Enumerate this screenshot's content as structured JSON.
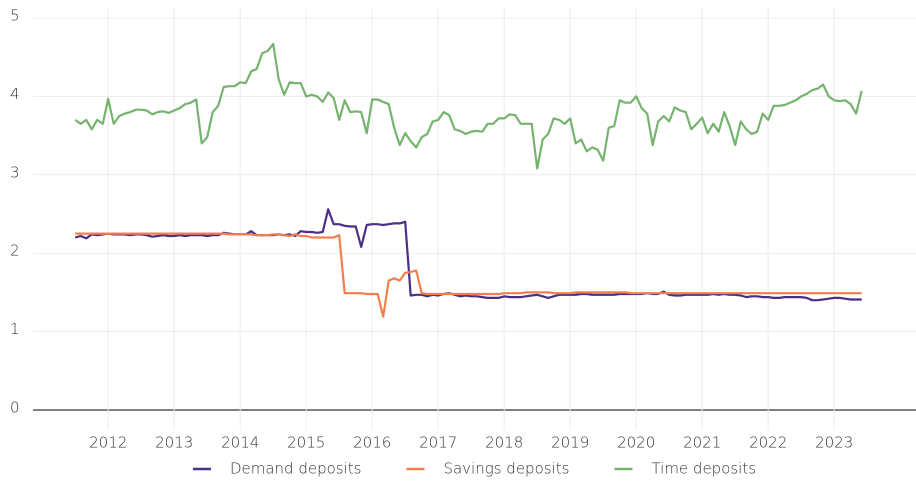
{
  "chart_data": {
    "type": "line",
    "x": [
      2012.0,
      2012.083,
      2012.167,
      2012.25,
      2012.333,
      2012.417,
      2012.5,
      2012.583,
      2012.667,
      2012.75,
      2012.833,
      2012.917,
      2013.0,
      2013.083,
      2013.167,
      2013.25,
      2013.333,
      2013.417,
      2013.5,
      2013.583,
      2013.667,
      2013.75,
      2013.833,
      2013.917,
      2014.0,
      2014.083,
      2014.167,
      2014.25,
      2014.333,
      2014.417,
      2014.5,
      2014.583,
      2014.667,
      2014.75,
      2014.833,
      2014.917,
      2015.0,
      2015.083,
      2015.167,
      2015.25,
      2015.333,
      2015.417,
      2015.5,
      2015.583,
      2015.667,
      2015.75,
      2015.833,
      2015.917,
      2016.0,
      2016.083,
      2016.167,
      2016.25,
      2016.333,
      2016.417,
      2016.5,
      2016.583,
      2016.667,
      2016.75,
      2016.833,
      2016.917,
      2017.0,
      2017.083,
      2017.167,
      2017.25,
      2017.333,
      2017.417,
      2017.5,
      2017.583,
      2017.667,
      2017.75,
      2017.833,
      2017.917,
      2018.0,
      2018.083,
      2018.167,
      2018.25,
      2018.333,
      2018.417,
      2018.5,
      2018.583,
      2018.667,
      2018.75,
      2018.833,
      2018.917,
      2019.0,
      2019.083,
      2019.167,
      2019.25,
      2019.333,
      2019.417,
      2019.5,
      2019.583,
      2019.667,
      2019.75,
      2019.833,
      2019.917,
      2020.0,
      2020.083,
      2020.167,
      2020.25,
      2020.333,
      2020.417,
      2020.5,
      2020.583,
      2020.667,
      2020.75,
      2020.833,
      2020.917,
      2021.0,
      2021.083,
      2021.167,
      2021.25,
      2021.333,
      2021.417,
      2021.5,
      2021.583,
      2021.667,
      2021.75,
      2021.833,
      2021.917,
      2022.0,
      2022.083,
      2022.167,
      2022.25,
      2022.333,
      2022.417,
      2022.5,
      2022.583,
      2022.667,
      2022.75,
      2022.833,
      2022.917,
      2023.0,
      2023.083,
      2023.167,
      2023.25,
      2023.333,
      2023.417,
      2023.5,
      2023.583,
      2023.667,
      2023.75,
      2023.833,
      2023.917
    ],
    "series": [
      {
        "name": "Demand deposits",
        "color": "#4a2f86",
        "values": [
          2.2,
          2.22,
          2.19,
          2.24,
          2.23,
          2.24,
          2.25,
          2.24,
          2.24,
          2.24,
          2.23,
          2.24,
          2.24,
          2.23,
          2.21,
          2.22,
          2.23,
          2.22,
          2.22,
          2.23,
          2.22,
          2.23,
          2.23,
          2.23,
          2.22,
          2.23,
          2.23,
          2.26,
          2.25,
          2.24,
          2.24,
          2.24,
          2.28,
          2.23,
          2.23,
          2.23,
          2.23,
          2.24,
          2.23,
          2.24,
          2.22,
          2.28,
          2.27,
          2.27,
          2.26,
          2.27,
          2.56,
          2.37,
          2.37,
          2.35,
          2.34,
          2.34,
          2.08,
          2.36,
          2.37,
          2.37,
          2.36,
          2.37,
          2.38,
          2.38,
          2.4,
          1.46,
          1.47,
          1.47,
          1.45,
          1.47,
          1.46,
          1.48,
          1.49,
          1.47,
          1.45,
          1.46,
          1.45,
          1.45,
          1.44,
          1.43,
          1.43,
          1.43,
          1.45,
          1.44,
          1.44,
          1.44,
          1.45,
          1.46,
          1.47,
          1.45,
          1.43,
          1.45,
          1.47,
          1.47,
          1.47,
          1.47,
          1.48,
          1.48,
          1.47,
          1.47,
          1.47,
          1.47,
          1.47,
          1.48,
          1.48,
          1.48,
          1.48,
          1.48,
          1.49,
          1.48,
          1.48,
          1.51,
          1.47,
          1.46,
          1.46,
          1.47,
          1.47,
          1.47,
          1.47,
          1.47,
          1.48,
          1.47,
          1.48,
          1.47,
          1.47,
          1.46,
          1.44,
          1.45,
          1.45,
          1.44,
          1.44,
          1.43,
          1.43,
          1.44,
          1.44,
          1.44,
          1.44,
          1.43,
          1.4,
          1.4,
          1.41,
          1.42,
          1.43,
          1.43,
          1.42,
          1.41,
          1.41,
          1.41
        ]
      },
      {
        "name": "Savings deposits",
        "color": "#f07f4f",
        "values": [
          2.25,
          2.25,
          2.25,
          2.25,
          2.25,
          2.25,
          2.25,
          2.25,
          2.25,
          2.25,
          2.25,
          2.25,
          2.25,
          2.25,
          2.25,
          2.25,
          2.25,
          2.25,
          2.25,
          2.25,
          2.25,
          2.25,
          2.25,
          2.25,
          2.25,
          2.25,
          2.25,
          2.25,
          2.24,
          2.24,
          2.24,
          2.24,
          2.24,
          2.23,
          2.23,
          2.23,
          2.24,
          2.24,
          2.23,
          2.22,
          2.24,
          2.22,
          2.22,
          2.2,
          2.2,
          2.2,
          2.2,
          2.2,
          2.23,
          1.49,
          1.49,
          1.49,
          1.49,
          1.48,
          1.48,
          1.48,
          1.19,
          1.65,
          1.68,
          1.65,
          1.75,
          1.76,
          1.78,
          1.49,
          1.48,
          1.48,
          1.48,
          1.48,
          1.48,
          1.48,
          1.48,
          1.48,
          1.48,
          1.48,
          1.48,
          1.48,
          1.48,
          1.48,
          1.49,
          1.49,
          1.49,
          1.49,
          1.5,
          1.5,
          1.5,
          1.5,
          1.5,
          1.49,
          1.49,
          1.49,
          1.49,
          1.5,
          1.5,
          1.5,
          1.5,
          1.5,
          1.5,
          1.5,
          1.5,
          1.5,
          1.5,
          1.49,
          1.49,
          1.49,
          1.49,
          1.49,
          1.49,
          1.49,
          1.49,
          1.49,
          1.49,
          1.49,
          1.49,
          1.49,
          1.49,
          1.49,
          1.49,
          1.49,
          1.49,
          1.49,
          1.49,
          1.49,
          1.49,
          1.49,
          1.49,
          1.49,
          1.49,
          1.49,
          1.49,
          1.49,
          1.49,
          1.49,
          1.49,
          1.49,
          1.49,
          1.49,
          1.49,
          1.49,
          1.49,
          1.49,
          1.49,
          1.49,
          1.49,
          1.49
        ]
      },
      {
        "name": "Time deposits",
        "color": "#76b36e",
        "values": [
          3.7,
          3.65,
          3.7,
          3.58,
          3.7,
          3.65,
          3.97,
          3.65,
          3.75,
          3.78,
          3.8,
          3.83,
          3.83,
          3.82,
          3.77,
          3.8,
          3.81,
          3.79,
          3.82,
          3.85,
          3.9,
          3.92,
          3.96,
          3.4,
          3.48,
          3.8,
          3.88,
          4.12,
          4.13,
          4.13,
          4.18,
          4.17,
          4.32,
          4.35,
          4.55,
          4.58,
          4.67,
          4.22,
          4.02,
          4.18,
          4.17,
          4.17,
          4.0,
          4.02,
          4.0,
          3.93,
          4.05,
          3.98,
          3.7,
          3.95,
          3.8,
          3.81,
          3.8,
          3.53,
          3.96,
          3.96,
          3.93,
          3.9,
          3.6,
          3.38,
          3.53,
          3.43,
          3.35,
          3.48,
          3.52,
          3.68,
          3.7,
          3.8,
          3.76,
          3.58,
          3.56,
          3.52,
          3.55,
          3.56,
          3.55,
          3.65,
          3.65,
          3.72,
          3.72,
          3.77,
          3.76,
          3.65,
          3.65,
          3.65,
          3.08,
          3.45,
          3.52,
          3.72,
          3.7,
          3.65,
          3.72,
          3.4,
          3.45,
          3.3,
          3.35,
          3.32,
          3.18,
          3.6,
          3.62,
          3.95,
          3.92,
          3.92,
          4.0,
          3.85,
          3.78,
          3.38,
          3.68,
          3.75,
          3.68,
          3.86,
          3.82,
          3.8,
          3.58,
          3.65,
          3.73,
          3.53,
          3.65,
          3.55,
          3.8,
          3.62,
          3.38,
          3.68,
          3.58,
          3.52,
          3.55,
          3.78,
          3.7,
          3.88,
          3.88,
          3.89,
          3.92,
          3.95,
          4.0,
          4.03,
          4.08,
          4.1,
          4.15,
          4.0,
          3.95,
          3.94,
          3.95,
          3.9,
          3.78,
          4.07
        ]
      }
    ],
    "xlim": [
      2011.36,
      2024.74
    ],
    "xticks": [
      {
        "value": 2012.5,
        "label": "2012"
      },
      {
        "value": 2013.5,
        "label": "2013"
      },
      {
        "value": 2014.5,
        "label": "2014"
      },
      {
        "value": 2015.5,
        "label": "2015"
      },
      {
        "value": 2016.5,
        "label": "2016"
      },
      {
        "value": 2017.5,
        "label": "2017"
      },
      {
        "value": 2018.5,
        "label": "2018"
      },
      {
        "value": 2019.5,
        "label": "2019"
      },
      {
        "value": 2020.5,
        "label": "2020"
      },
      {
        "value": 2021.5,
        "label": "2021"
      },
      {
        "value": 2022.5,
        "label": "2022"
      },
      {
        "value": 2023.5,
        "label": "2023"
      }
    ],
    "ylim": [
      0,
      5
    ],
    "yticks": [
      0,
      1,
      2,
      3,
      4,
      5
    ],
    "grid": true,
    "legend": "bottom"
  }
}
